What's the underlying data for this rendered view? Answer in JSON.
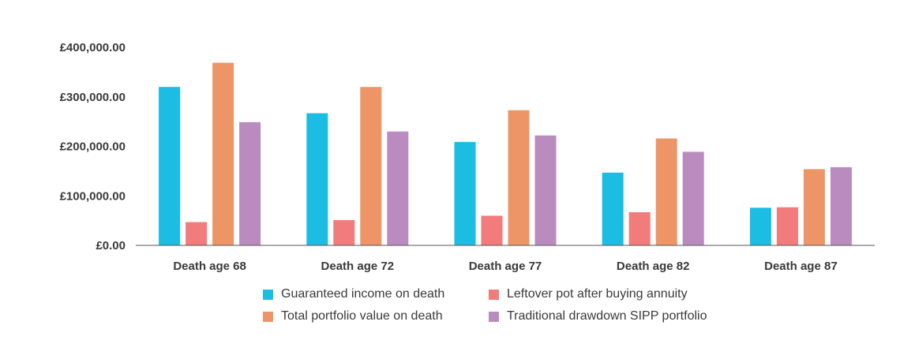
{
  "chart_data": {
    "type": "bar",
    "title": "",
    "xlabel": "",
    "ylabel": "",
    "categories": [
      "Death age 68",
      "Death age 72",
      "Death age 77",
      "Death age 82",
      "Death age 87"
    ],
    "ylim": [
      0,
      400000
    ],
    "yticks": [
      0,
      100000,
      200000,
      300000,
      400000
    ],
    "ytick_labels": [
      "£0.00",
      "£100,000.00",
      "£200,000.00",
      "£300,000.00",
      "£400,000.00"
    ],
    "grid": false,
    "legend_position": "bottom",
    "series": [
      {
        "name": "Guaranteed income on death",
        "color": "#1bbde3",
        "values": [
          320000,
          267000,
          209000,
          147000,
          76000
        ]
      },
      {
        "name": "Leftover pot after buying annuity",
        "color": "#f27b7b",
        "values": [
          47000,
          51000,
          60000,
          67000,
          77000
        ]
      },
      {
        "name": "Total portfolio value on death",
        "color": "#ee9568",
        "values": [
          369000,
          320000,
          273000,
          216000,
          154000
        ]
      },
      {
        "name": "Traditional drawdown SIPP portfolio",
        "color": "#b98bbf",
        "values": [
          249000,
          230000,
          222000,
          189000,
          158000
        ]
      }
    ]
  },
  "legend": {
    "items": [
      {
        "label": "Guaranteed income on death",
        "color": "#1bbde3"
      },
      {
        "label": "Leftover pot after buying annuity",
        "color": "#f27b7b"
      },
      {
        "label": "Total portfolio value on death",
        "color": "#ee9568"
      },
      {
        "label": "Traditional drawdown SIPP portfolio",
        "color": "#b98bbf"
      }
    ]
  }
}
